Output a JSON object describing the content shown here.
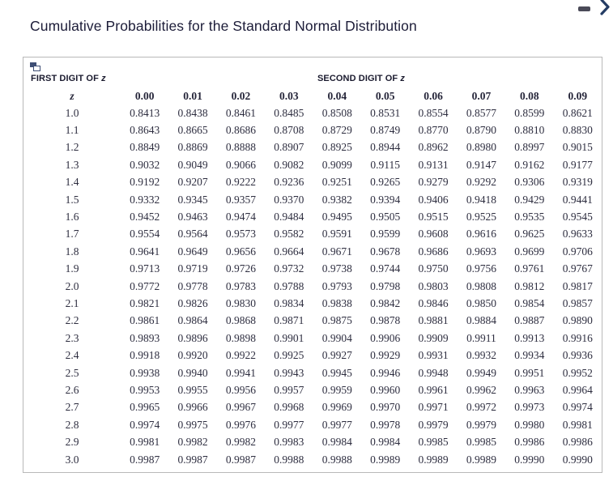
{
  "window": {
    "title": "Cumulative Probabilities for the Standard Normal Distribution",
    "icons": {
      "minimize": "dash-minimize-icon",
      "next": "chevron-right-icon",
      "panel_corner": "overlapping-windows-copy-icon"
    },
    "colors": {
      "title_text": "#1c1c38",
      "accent_navy": "#3e4e74",
      "chevron_navy": "#243c64",
      "dash_gray": "#4a4a58",
      "panel_border": "#b9b9b9",
      "table_text": "#2e2e40"
    }
  },
  "panel": {
    "header": {
      "first_digit_label": "FIRST DIGIT OF",
      "second_digit_label": "SECOND DIGIT OF",
      "z_symbol": "z"
    },
    "table": {
      "columns": [
        "z",
        "0.00",
        "0.01",
        "0.02",
        "0.03",
        "0.04",
        "0.05",
        "0.06",
        "0.07",
        "0.08",
        "0.09"
      ],
      "rows": [
        {
          "z": "1.0",
          "values": [
            "0.8413",
            "0.8438",
            "0.8461",
            "0.8485",
            "0.8508",
            "0.8531",
            "0.8554",
            "0.8577",
            "0.8599",
            "0.8621"
          ]
        },
        {
          "z": "1.1",
          "values": [
            "0.8643",
            "0.8665",
            "0.8686",
            "0.8708",
            "0.8729",
            "0.8749",
            "0.8770",
            "0.8790",
            "0.8810",
            "0.8830"
          ]
        },
        {
          "z": "1.2",
          "values": [
            "0.8849",
            "0.8869",
            "0.8888",
            "0.8907",
            "0.8925",
            "0.8944",
            "0.8962",
            "0.8980",
            "0.8997",
            "0.9015"
          ]
        },
        {
          "z": "1.3",
          "values": [
            "0.9032",
            "0.9049",
            "0.9066",
            "0.9082",
            "0.9099",
            "0.9115",
            "0.9131",
            "0.9147",
            "0.9162",
            "0.9177"
          ]
        },
        {
          "z": "1.4",
          "values": [
            "0.9192",
            "0.9207",
            "0.9222",
            "0.9236",
            "0.9251",
            "0.9265",
            "0.9279",
            "0.9292",
            "0.9306",
            "0.9319"
          ]
        },
        {
          "z": "1.5",
          "values": [
            "0.9332",
            "0.9345",
            "0.9357",
            "0.9370",
            "0.9382",
            "0.9394",
            "0.9406",
            "0.9418",
            "0.9429",
            "0.9441"
          ]
        },
        {
          "z": "1.6",
          "values": [
            "0.9452",
            "0.9463",
            "0.9474",
            "0.9484",
            "0.9495",
            "0.9505",
            "0.9515",
            "0.9525",
            "0.9535",
            "0.9545"
          ]
        },
        {
          "z": "1.7",
          "values": [
            "0.9554",
            "0.9564",
            "0.9573",
            "0.9582",
            "0.9591",
            "0.9599",
            "0.9608",
            "0.9616",
            "0.9625",
            "0.9633"
          ]
        },
        {
          "z": "1.8",
          "values": [
            "0.9641",
            "0.9649",
            "0.9656",
            "0.9664",
            "0.9671",
            "0.9678",
            "0.9686",
            "0.9693",
            "0.9699",
            "0.9706"
          ]
        },
        {
          "z": "1.9",
          "values": [
            "0.9713",
            "0.9719",
            "0.9726",
            "0.9732",
            "0.9738",
            "0.9744",
            "0.9750",
            "0.9756",
            "0.9761",
            "0.9767"
          ]
        },
        {
          "z": "2.0",
          "values": [
            "0.9772",
            "0.9778",
            "0.9783",
            "0.9788",
            "0.9793",
            "0.9798",
            "0.9803",
            "0.9808",
            "0.9812",
            "0.9817"
          ]
        },
        {
          "z": "2.1",
          "values": [
            "0.9821",
            "0.9826",
            "0.9830",
            "0.9834",
            "0.9838",
            "0.9842",
            "0.9846",
            "0.9850",
            "0.9854",
            "0.9857"
          ]
        },
        {
          "z": "2.2",
          "values": [
            "0.9861",
            "0.9864",
            "0.9868",
            "0.9871",
            "0.9875",
            "0.9878",
            "0.9881",
            "0.9884",
            "0.9887",
            "0.9890"
          ]
        },
        {
          "z": "2.3",
          "values": [
            "0.9893",
            "0.9896",
            "0.9898",
            "0.9901",
            "0.9904",
            "0.9906",
            "0.9909",
            "0.9911",
            "0.9913",
            "0.9916"
          ]
        },
        {
          "z": "2.4",
          "values": [
            "0.9918",
            "0.9920",
            "0.9922",
            "0.9925",
            "0.9927",
            "0.9929",
            "0.9931",
            "0.9932",
            "0.9934",
            "0.9936"
          ]
        },
        {
          "z": "2.5",
          "values": [
            "0.9938",
            "0.9940",
            "0.9941",
            "0.9943",
            "0.9945",
            "0.9946",
            "0.9948",
            "0.9949",
            "0.9951",
            "0.9952"
          ]
        },
        {
          "z": "2.6",
          "values": [
            "0.9953",
            "0.9955",
            "0.9956",
            "0.9957",
            "0.9959",
            "0.9960",
            "0.9961",
            "0.9962",
            "0.9963",
            "0.9964"
          ]
        },
        {
          "z": "2.7",
          "values": [
            "0.9965",
            "0.9966",
            "0.9967",
            "0.9968",
            "0.9969",
            "0.9970",
            "0.9971",
            "0.9972",
            "0.9973",
            "0.9974"
          ]
        },
        {
          "z": "2.8",
          "values": [
            "0.9974",
            "0.9975",
            "0.9976",
            "0.9977",
            "0.9977",
            "0.9978",
            "0.9979",
            "0.9979",
            "0.9980",
            "0.9981"
          ]
        },
        {
          "z": "2.9",
          "values": [
            "0.9981",
            "0.9982",
            "0.9982",
            "0.9983",
            "0.9984",
            "0.9984",
            "0.9985",
            "0.9985",
            "0.9986",
            "0.9986"
          ]
        },
        {
          "z": "3.0",
          "values": [
            "0.9987",
            "0.9987",
            "0.9987",
            "0.9988",
            "0.9988",
            "0.9989",
            "0.9989",
            "0.9989",
            "0.9990",
            "0.9990"
          ]
        }
      ]
    }
  }
}
